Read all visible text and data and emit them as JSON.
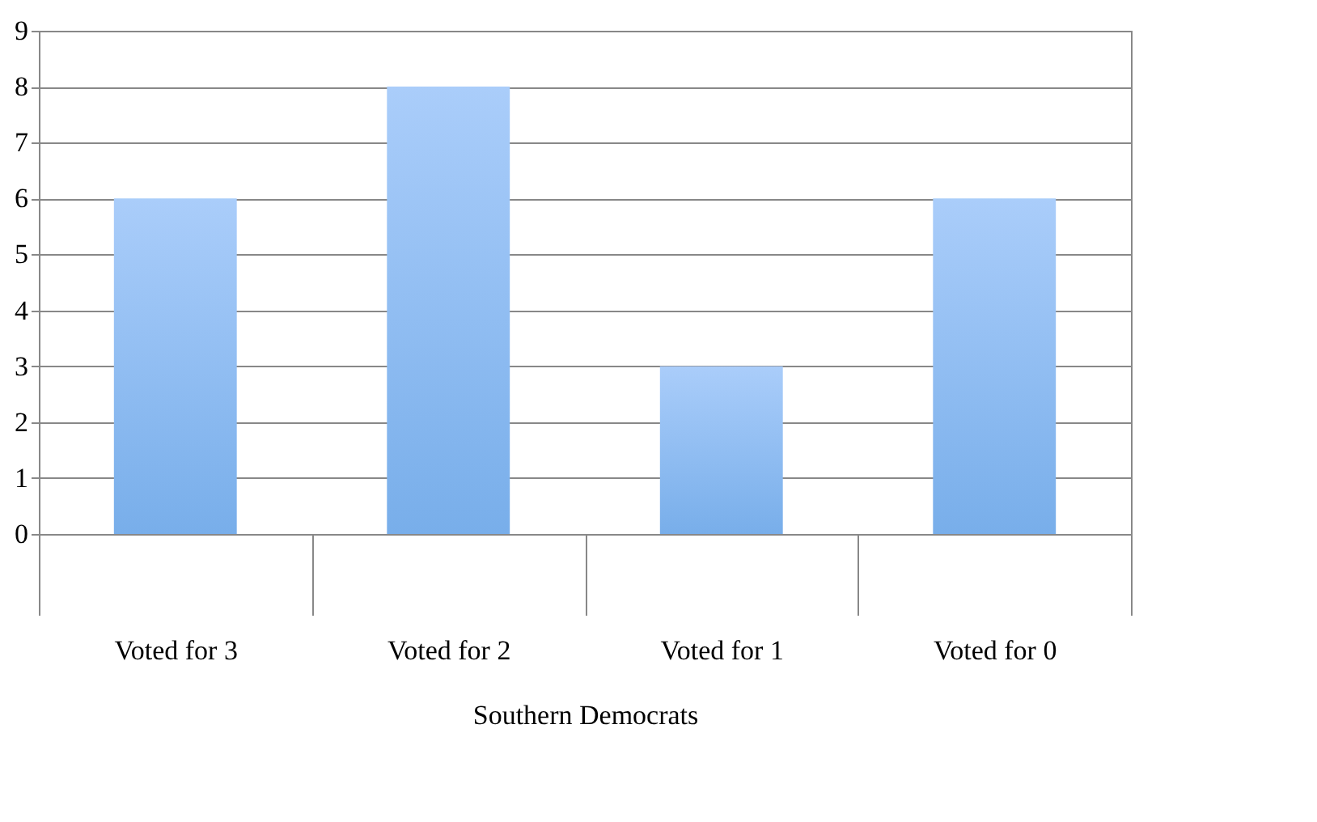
{
  "chart_data": {
    "type": "bar",
    "categories": [
      "Voted for 3",
      "Voted for 2",
      "Voted for 1",
      "Voted for 0"
    ],
    "values": [
      6,
      8,
      3,
      6
    ],
    "color": "#78aeea",
    "xlabel": "Southern Democrats",
    "ylim": [
      0,
      9
    ],
    "yticks": [
      0,
      1,
      2,
      3,
      4,
      5,
      6,
      7,
      8,
      9
    ],
    "grid": "y"
  }
}
